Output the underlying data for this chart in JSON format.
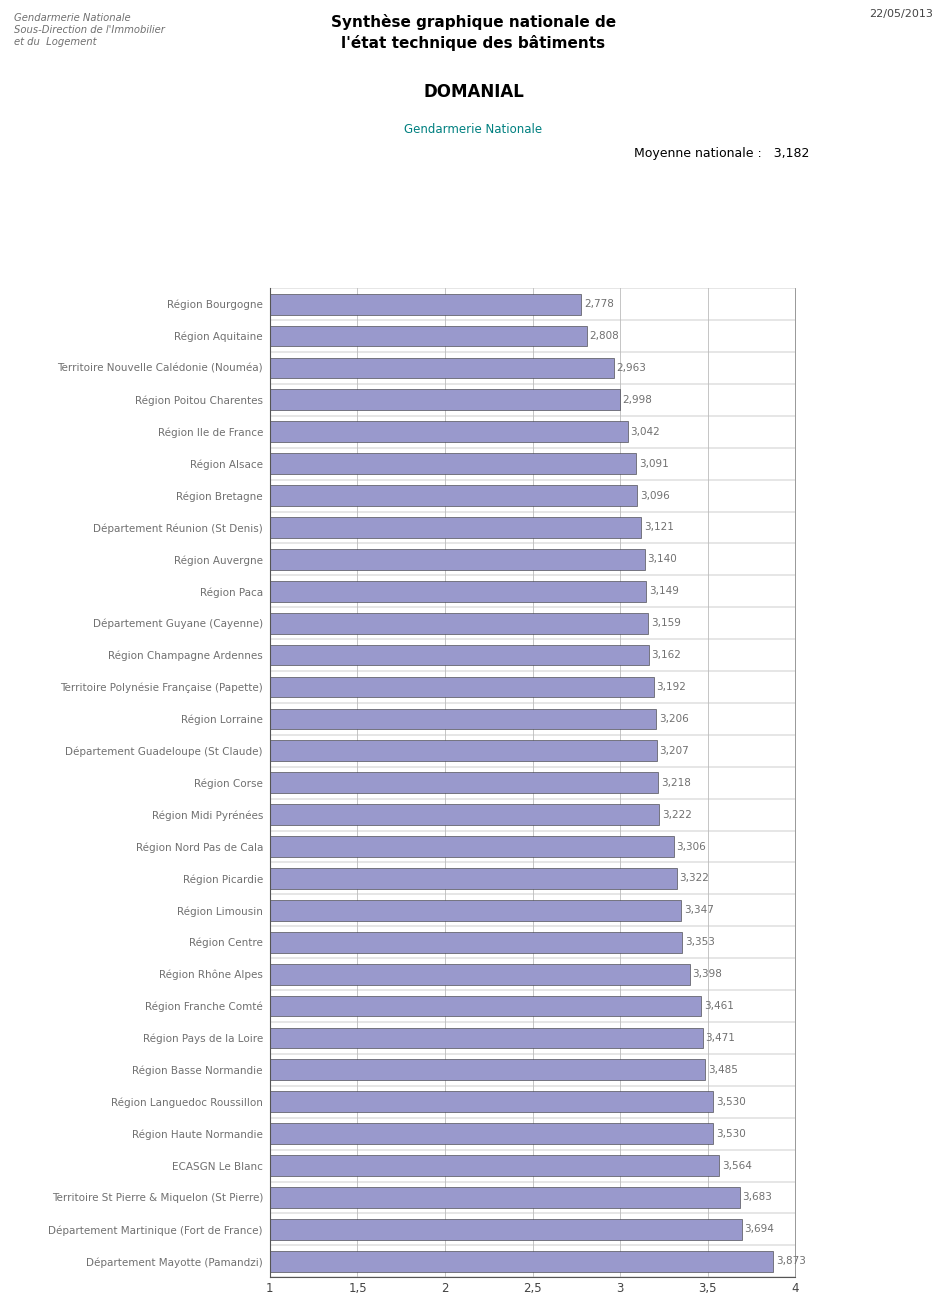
{
  "categories": [
    "Région Bourgogne",
    "Région Aquitaine",
    "Territoire Nouvelle Calédonie (Nouméa)",
    "Région Poitou Charentes",
    "Région Ile de France",
    "Région Alsace",
    "Région Bretagne",
    "Département Réunion (St Denis)",
    "Région Auvergne",
    "Région Paca",
    "Département Guyane (Cayenne)",
    "Région Champagne Ardennes",
    "Territoire Polynésie Française (Papette)",
    "Région Lorraine",
    "Département Guadeloupe (St Claude)",
    "Région Corse",
    "Région Midi Pyrénées",
    "Région Nord Pas de Cala",
    "Région Picardie",
    "Région Limousin",
    "Région Centre",
    "Région Rhône Alpes",
    "Région Franche Comté",
    "Région Pays de la Loire",
    "Région Basse Normandie",
    "Région Languedoc Roussillon",
    "Région Haute Normandie",
    "ECASGN Le Blanc",
    "Territoire St Pierre & Miquelon (St Pierre)",
    "Département Martinique (Fort de France)",
    "Département Mayotte (Pamandzi)"
  ],
  "values": [
    2.778,
    2.808,
    2.963,
    2.998,
    3.042,
    3.091,
    3.096,
    3.121,
    3.14,
    3.149,
    3.159,
    3.162,
    3.192,
    3.206,
    3.207,
    3.218,
    3.222,
    3.306,
    3.322,
    3.347,
    3.353,
    3.398,
    3.461,
    3.471,
    3.485,
    3.53,
    3.53,
    3.564,
    3.683,
    3.694,
    3.873
  ],
  "value_labels": [
    "2,778",
    "2,808",
    "2,963",
    "2,998",
    "3,042",
    "3,091",
    "3,096",
    "3,121",
    "3,140",
    "3,149",
    "3,159",
    "3,162",
    "3,192",
    "3,206",
    "3,207",
    "3,218",
    "3,222",
    "3,306",
    "3,322",
    "3,347",
    "3,353",
    "3,398",
    "3,461",
    "3,471",
    "3,485",
    "3,530",
    "3,530",
    "3,564",
    "3,683",
    "3,694",
    "3,873"
  ],
  "bar_color": "#9999CC",
  "bar_edge_color": "#333333",
  "xlim": [
    1,
    4
  ],
  "xticks": [
    1.0,
    1.5,
    2.0,
    2.5,
    3.0,
    3.5,
    4.0
  ],
  "xtick_labels": [
    "1",
    "1,5",
    "2",
    "2,5",
    "3",
    "3,5",
    "4"
  ],
  "mean_value": 3.182,
  "mean_label": "Moyenne nationale :   3,182",
  "title_box_text": "Synthèse graphique nationale de\nl'état technique des bâtiments",
  "subtitle_box_text": "DOMANIAL",
  "subtitle2_text": "Gendarmerie Nationale",
  "header_line1": "Gendarmerie Nationale",
  "header_line2": "Sous-Direction de l'Immobilier",
  "header_line3": "et du  Logement",
  "date_text": "22/05/2013",
  "title_box_bg": "#96CDCD",
  "subtitle_box_bg": "#00FFFF",
  "bg_color": "#FFFFFF",
  "grid_color": "#BBBBBB",
  "header_color": "#707070",
  "subtitle2_color": "#008080",
  "label_color": "#707070",
  "value_color": "#707070",
  "mean_box_bg": "#D0D0D0",
  "mean_box_border": "#888888"
}
